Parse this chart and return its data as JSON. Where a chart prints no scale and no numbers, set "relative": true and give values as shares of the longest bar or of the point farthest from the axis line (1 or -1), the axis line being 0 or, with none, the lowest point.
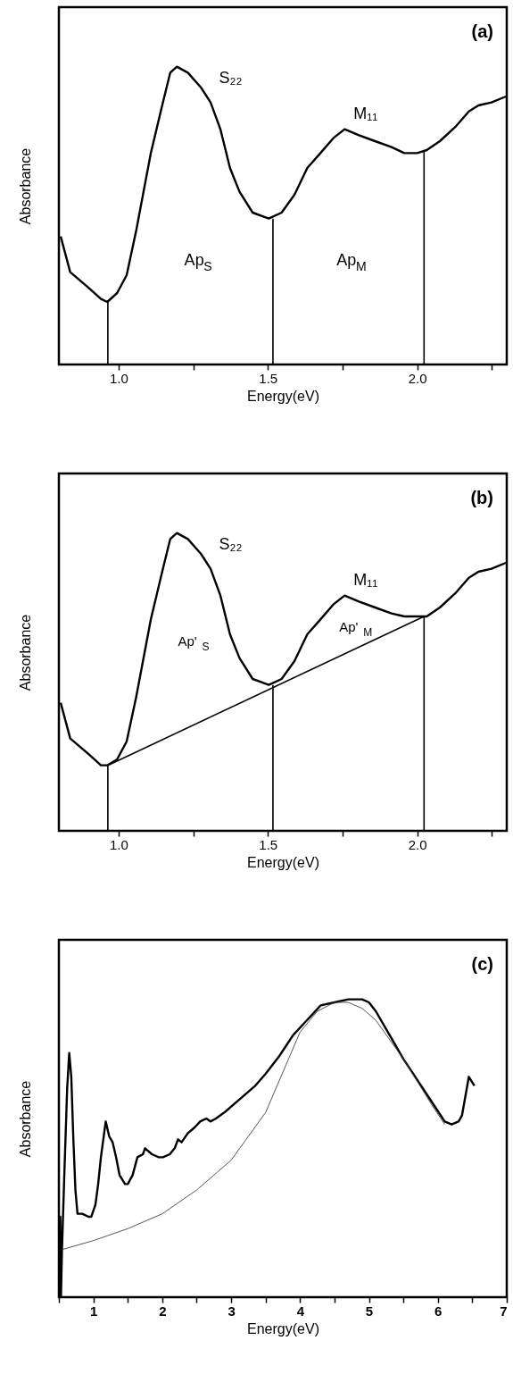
{
  "chart_data": [
    {
      "type": "line",
      "relative": true,
      "xlabel": "Energy(eV)",
      "ylabel": "Absorbance",
      "xlim": [
        0.8,
        2.3
      ],
      "xticks": [
        {
          "value": 1,
          "label": "1.0"
        },
        {
          "value": 1.25,
          "label": null
        },
        1.5,
        {
          "value": 1.75,
          "label": null
        },
        {
          "value": 2,
          "label": "2.0"
        },
        {
          "value": 2.25,
          "label": null
        }
      ],
      "series": [
        {
          "color": "#000000",
          "x": [
            0.806,
            0.838,
            0.897,
            0.941,
            0.962,
            0.995,
            1.027,
            1.059,
            1.108,
            1.146,
            1.173,
            1.195,
            1.232,
            1.276,
            1.308,
            1.341,
            1.373,
            1.405,
            1.449,
            1.503,
            1.546,
            1.589,
            1.632,
            1.676,
            1.719,
            1.757,
            1.805,
            1.859,
            1.914,
            1.957,
            2.0,
            2.032,
            2.076,
            2.13,
            2.173,
            2.205,
            2.249,
            2.297
          ],
          "values": [
            0.43,
            0.31,
            0.26,
            0.22,
            0.21,
            0.24,
            0.3,
            0.45,
            0.71,
            0.87,
            0.98,
            1.0,
            0.98,
            0.93,
            0.88,
            0.79,
            0.66,
            0.58,
            0.51,
            0.49,
            0.51,
            0.57,
            0.66,
            0.71,
            0.76,
            0.79,
            0.77,
            0.75,
            0.73,
            0.71,
            0.71,
            0.72,
            0.75,
            0.8,
            0.85,
            0.87,
            0.88,
            0.9
          ]
        },
        {
          "color": "#000000",
          "x": [
            0.964,
            0.964
          ],
          "values": [
            0,
            0.21
          ]
        },
        {
          "color": "#000000",
          "x": [
            1.517,
            1.517
          ],
          "values": [
            0,
            0.49
          ]
        },
        {
          "color": "#000000",
          "x": [
            2.023,
            2.023
          ],
          "values": [
            0,
            0.72
          ]
        }
      ],
      "annotations": [
        "(a)",
        "S₂₂",
        "M₁₁",
        "Ap$_{S}$",
        "Ap$_{M}$"
      ]
    },
    {
      "type": "line",
      "relative": true,
      "xlabel": "Energy(eV)",
      "ylabel": "Absorbance",
      "xlim": [
        0.8,
        2.3
      ],
      "xticks": [
        {
          "value": 1,
          "label": "1.0"
        },
        {
          "value": 1.25,
          "label": null
        },
        1.5,
        {
          "value": 1.75,
          "label": null
        },
        {
          "value": 2,
          "label": "2.0"
        },
        {
          "value": 2.25,
          "label": null
        }
      ],
      "series": [
        {
          "color": "#000000",
          "x": [
            0.806,
            0.838,
            0.897,
            0.941,
            0.962,
            0.995,
            1.027,
            1.059,
            1.108,
            1.146,
            1.173,
            1.195,
            1.232,
            1.276,
            1.308,
            1.341,
            1.373,
            1.405,
            1.449,
            1.503,
            1.546,
            1.589,
            1.632,
            1.676,
            1.719,
            1.757,
            1.805,
            1.859,
            1.914,
            1.957,
            2.0,
            2.032,
            2.076,
            2.13,
            2.173,
            2.205,
            2.249,
            2.297
          ],
          "values": [
            0.43,
            0.31,
            0.26,
            0.22,
            0.22,
            0.24,
            0.3,
            0.45,
            0.71,
            0.87,
            0.98,
            1.0,
            0.98,
            0.93,
            0.88,
            0.79,
            0.66,
            0.58,
            0.51,
            0.49,
            0.51,
            0.57,
            0.66,
            0.71,
            0.76,
            0.79,
            0.77,
            0.75,
            0.73,
            0.72,
            0.72,
            0.72,
            0.75,
            0.8,
            0.85,
            0.87,
            0.88,
            0.9
          ]
        },
        {
          "color": "#000000",
          "x": [
            0.964,
            2.023
          ],
          "values": [
            0.22,
            0.72
          ]
        },
        {
          "color": "#000000",
          "x": [
            0.964,
            0.964
          ],
          "values": [
            0,
            0.22
          ]
        },
        {
          "color": "#000000",
          "x": [
            1.517,
            1.517
          ],
          "values": [
            0,
            0.49
          ]
        },
        {
          "color": "#000000",
          "x": [
            2.023,
            2.023
          ],
          "values": [
            0,
            0.72
          ]
        }
      ],
      "annotations": [
        "(b)",
        "S₂₂",
        "M₁₁",
        "Ap'$_{S}$",
        "Ap'$_{M}$"
      ]
    },
    {
      "type": "line",
      "relative": true,
      "xlabel": "Energy(eV)",
      "ylabel": "Absorbance",
      "xlim": [
        0.5,
        7
      ],
      "xticks": [
        {
          "value": 0.5,
          "label": null
        },
        1,
        {
          "value": 1.5,
          "label": null
        },
        2,
        {
          "value": 2.5,
          "label": null
        },
        3,
        {
          "value": 3.5,
          "label": null
        },
        4,
        {
          "value": 4.5,
          "label": null
        },
        5,
        {
          "value": 5.5,
          "label": null
        },
        6,
        {
          "value": 6.5,
          "label": null
        },
        7
      ],
      "series": [
        {
          "color": "#000000",
          "x": [
            0.5,
            0.51,
            0.52,
            0.53,
            0.545,
            0.58,
            0.62,
            0.65,
            0.68,
            0.71,
            0.74,
            0.77,
            0.84,
            0.93,
            0.97,
            1.03,
            1.07,
            1.11,
            1.18,
            1.23,
            1.28,
            1.33,
            1.38,
            1.46,
            1.5,
            1.57,
            1.64,
            1.72,
            1.75,
            1.85,
            1.95,
            2.01,
            2.11,
            2.18,
            2.23,
            2.28,
            2.37,
            2.47,
            2.55,
            2.64,
            2.7,
            2.78,
            2.9,
            3.05,
            3.2,
            3.35,
            3.5,
            3.7,
            3.9,
            4.1,
            4.3,
            4.5,
            4.7,
            4.9,
            5.0,
            5.1,
            5.3,
            5.5,
            5.7,
            5.9,
            6.1,
            6.2,
            6.3,
            6.35,
            6.45,
            6.53
          ],
          "values": [
            0.16,
            0.0,
            0.27,
            0.0,
            0.16,
            0.42,
            0.7,
            0.82,
            0.74,
            0.53,
            0.36,
            0.28,
            0.28,
            0.27,
            0.27,
            0.31,
            0.38,
            0.47,
            0.59,
            0.54,
            0.52,
            0.47,
            0.41,
            0.38,
            0.38,
            0.41,
            0.47,
            0.48,
            0.5,
            0.48,
            0.47,
            0.47,
            0.48,
            0.5,
            0.53,
            0.52,
            0.55,
            0.57,
            0.59,
            0.6,
            0.59,
            0.6,
            0.62,
            0.65,
            0.68,
            0.71,
            0.75,
            0.81,
            0.88,
            0.93,
            0.98,
            0.99,
            1.0,
            1.0,
            0.99,
            0.96,
            0.88,
            0.8,
            0.73,
            0.66,
            0.59,
            0.58,
            0.59,
            0.61,
            0.74,
            0.71
          ]
        },
        {
          "color": "#444444",
          "x": [
            0.55,
            1.0,
            1.5,
            2.0,
            2.5,
            3.0,
            3.5,
            4.0,
            4.25,
            4.5,
            4.7,
            4.9,
            5.1,
            5.5,
            5.9,
            6.1
          ],
          "values": [
            0.16,
            0.19,
            0.23,
            0.28,
            0.36,
            0.46,
            0.62,
            0.89,
            0.96,
            0.99,
            0.99,
            0.97,
            0.93,
            0.8,
            0.65,
            0.58
          ]
        }
      ],
      "annotations": [
        "(c)"
      ]
    }
  ]
}
